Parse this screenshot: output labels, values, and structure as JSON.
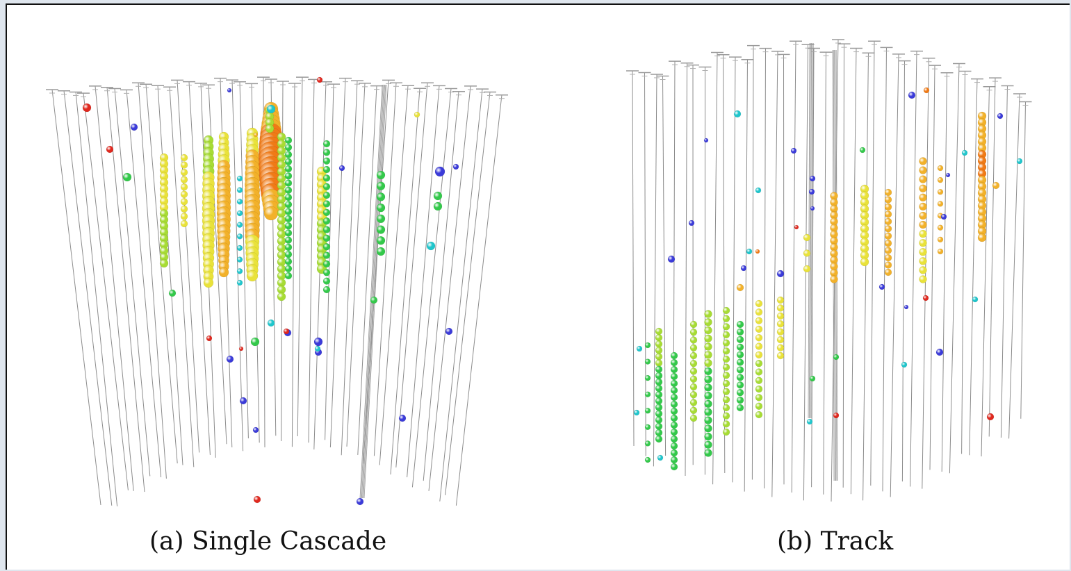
{
  "figure": {
    "panels": [
      {
        "id": "a",
        "caption": "(a) Single Cascade"
      },
      {
        "id": "b",
        "caption": "(b) Track"
      }
    ]
  },
  "colors": {
    "string_line": "#8c8c8c",
    "hit_scale": [
      "#e0281e",
      "#f07a16",
      "#f2b12a",
      "#e9e23a",
      "#a7dc34",
      "#33c94a",
      "#1fc6cc",
      "#3b3bd9"
    ]
  }
}
